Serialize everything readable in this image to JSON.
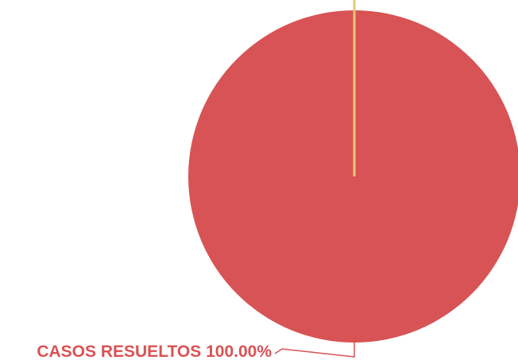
{
  "chart_data": {
    "type": "pie",
    "slices": [
      {
        "label": "CASOS RESUELTOS",
        "value": 100.0,
        "percent_label": "100.00%",
        "color": "#d85355"
      },
      {
        "label": "",
        "value": 0.0,
        "percent_label": "",
        "color": "#e6c877"
      }
    ],
    "label_color": "#d85355",
    "leader_color": "#d85355",
    "background": "#ffffff"
  }
}
